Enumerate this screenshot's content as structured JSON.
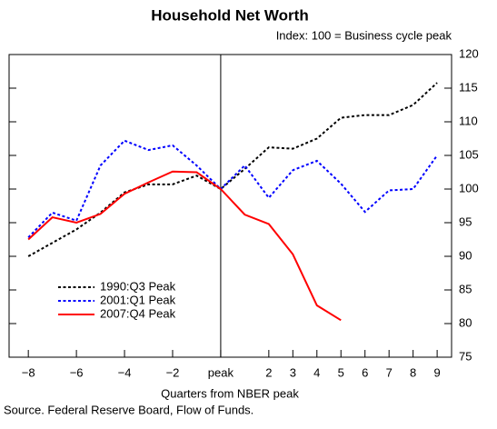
{
  "chart_data": {
    "type": "line",
    "title": "Household Net Worth",
    "subtitle": "Index: 100 = Business cycle peak",
    "x_label": "Quarters from NBER peak",
    "source": "Source. Federal Reserve Board, Flow of Funds.",
    "x": [
      -8,
      -7,
      -6,
      -5,
      -4,
      -3,
      -2,
      -1,
      0,
      1,
      2,
      3,
      4,
      5,
      6,
      7,
      8,
      9
    ],
    "series": [
      {
        "name": "1990:Q3 Peak",
        "color": "#000000",
        "dash": true,
        "values": [
          90,
          92,
          94,
          96.5,
          99.5,
          100.7,
          100.7,
          102,
          100,
          103,
          106.2,
          106,
          107.5,
          110.6,
          111,
          111,
          112.5,
          115.8
        ]
      },
      {
        "name": "2001:Q1 Peak",
        "color": "#0000ff",
        "dash": true,
        "values": [
          92.8,
          96.5,
          95.3,
          103.5,
          107.2,
          105.8,
          106.5,
          103.5,
          100,
          103.5,
          98.7,
          102.8,
          104.2,
          100.8,
          96.6,
          99.8,
          100,
          105
        ]
      },
      {
        "name": "2007:Q4 Peak",
        "color": "#ff0000",
        "dash": false,
        "values": [
          92.5,
          95.8,
          95,
          96.3,
          99.3,
          101,
          102.6,
          102.5,
          100,
          96.2,
          94.8,
          90.3,
          82.7,
          80.5,
          null,
          null,
          null,
          null
        ]
      }
    ],
    "xlim": [
      -8.8,
      9.6
    ],
    "xticks": [
      {
        "value": -8,
        "label": "−8"
      },
      {
        "value": -6,
        "label": "−6"
      },
      {
        "value": -4,
        "label": "−4"
      },
      {
        "value": -2,
        "label": "−2"
      },
      {
        "value": 0,
        "label": "peak"
      },
      2,
      3,
      4,
      5,
      6,
      7,
      8,
      9
    ],
    "ylim": [
      75,
      120
    ],
    "yticks": [
      75,
      80,
      85,
      90,
      95,
      100,
      105,
      110,
      115,
      120
    ],
    "legend": "lower-left"
  }
}
